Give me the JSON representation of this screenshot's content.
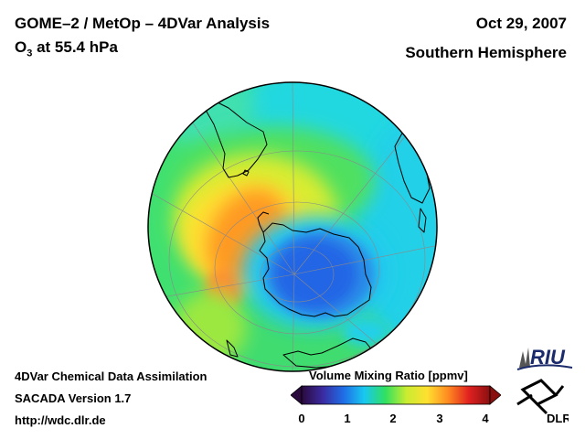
{
  "header": {
    "title": "GOME–2 / MetOp – 4DVar Analysis",
    "subtitle_base": "O",
    "subtitle_sub": "3",
    "subtitle_rest": " at 55.4 hPa",
    "date": "Oct 29, 2007",
    "region": "Southern Hemisphere"
  },
  "footer": {
    "line1": "4DVar Chemical Data Assimilation",
    "line2": "SACADA Version 1.7",
    "line3": "http://wdc.dlr.de"
  },
  "colorbar": {
    "title": "Volume Mixing Ratio [ppmv]",
    "min": 0,
    "max": 4,
    "ticks": [
      "0",
      "1",
      "2",
      "3",
      "4"
    ],
    "colors": [
      "#2a0a3c",
      "#3b2aa0",
      "#1f6ee6",
      "#18c8f0",
      "#30e060",
      "#c8ec30",
      "#ffe030",
      "#ff8a20",
      "#e02020",
      "#8a1010"
    ]
  },
  "logos": {
    "riu_text": "RIU",
    "dlr_text": "DLR"
  }
}
